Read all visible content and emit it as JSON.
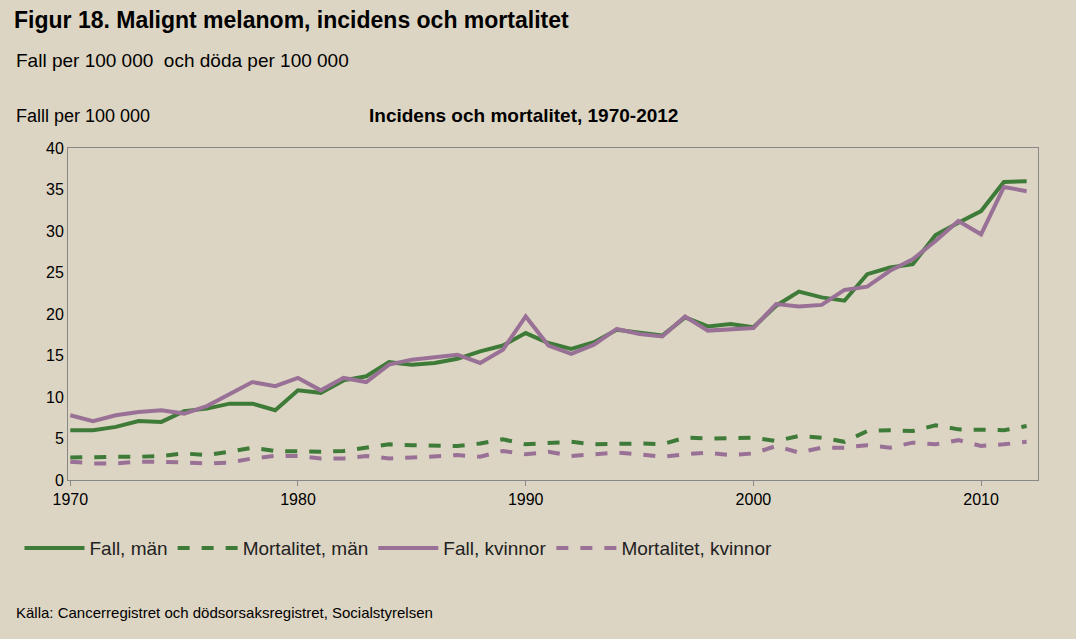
{
  "chart_data": {
    "type": "line",
    "title": "Figur 18. Malignt melanom, incidens och mortalitet",
    "subtitle": "Fall per 100 000  och döda per 100 000",
    "ylabel": "Falll per 100 000",
    "chart_title": "Incidens och mortalitet, 1970-2012",
    "source": "Källa: Cancerregistret och dödsorsaksregistret, Socialstyrelsen",
    "x": [
      1970,
      1971,
      1972,
      1973,
      1974,
      1975,
      1976,
      1977,
      1978,
      1979,
      1980,
      1981,
      1982,
      1983,
      1984,
      1985,
      1986,
      1987,
      1988,
      1989,
      1990,
      1991,
      1992,
      1993,
      1994,
      1995,
      1996,
      1997,
      1998,
      1999,
      2000,
      2001,
      2002,
      2003,
      2004,
      2005,
      2006,
      2007,
      2008,
      2009,
      2010,
      2011,
      2012
    ],
    "xlim": [
      1969.9,
      2012.5
    ],
    "xticks": [
      1970,
      1980,
      1990,
      2000,
      2010
    ],
    "ylim": [
      0,
      40
    ],
    "yticks": [
      0,
      5,
      10,
      15,
      20,
      25,
      30,
      35,
      40
    ],
    "grid": false,
    "legend": "bottom",
    "series": [
      {
        "name": "Fall, män",
        "color": "#3f7b38",
        "line_style": "solid",
        "values": [
          6.0,
          6.0,
          6.4,
          7.1,
          7.0,
          8.3,
          8.6,
          9.2,
          9.2,
          8.4,
          10.8,
          10.5,
          12.0,
          12.5,
          14.2,
          13.9,
          14.1,
          14.6,
          15.5,
          16.2,
          17.7,
          16.5,
          15.8,
          16.6,
          18.1,
          17.8,
          17.4,
          19.6,
          18.5,
          18.8,
          18.4,
          21.0,
          22.7,
          22.0,
          21.6,
          24.8,
          25.6,
          26.0,
          29.5,
          31.0,
          32.4,
          35.9,
          36.0
        ]
      },
      {
        "name": "Mortalitet, män",
        "color": "#3f7b38",
        "line_style": "dash",
        "values": [
          2.7,
          2.8,
          2.8,
          2.8,
          2.9,
          3.2,
          3.0,
          3.4,
          3.9,
          3.5,
          3.4,
          3.4,
          3.5,
          3.9,
          4.3,
          4.2,
          4.2,
          4.1,
          4.4,
          4.9,
          4.3,
          4.4,
          4.6,
          4.3,
          4.4,
          4.4,
          4.3,
          5.1,
          5.0,
          5.0,
          5.1,
          4.7,
          5.3,
          5.1,
          4.6,
          5.9,
          6.0,
          5.9,
          6.6,
          6.1,
          6.1,
          6.0,
          6.5
        ]
      },
      {
        "name": "Fall, kvinnor",
        "color": "#9a7196",
        "line_style": "solid",
        "values": [
          7.8,
          7.1,
          7.8,
          8.2,
          8.4,
          8.0,
          8.9,
          10.4,
          11.8,
          11.3,
          12.3,
          10.8,
          12.3,
          11.8,
          13.9,
          14.5,
          14.8,
          15.1,
          14.1,
          15.7,
          19.7,
          16.2,
          15.2,
          16.3,
          18.2,
          17.6,
          17.3,
          19.7,
          18.0,
          18.1,
          18.3,
          21.2,
          20.9,
          21.1,
          22.9,
          23.3,
          25.2,
          26.6,
          28.8,
          31.2,
          29.6,
          35.3,
          34.8
        ]
      },
      {
        "name": "Mortalitet, kvinnor",
        "color": "#9a7196",
        "line_style": "dash",
        "values": [
          2.2,
          2.0,
          2.0,
          2.2,
          2.2,
          2.1,
          2.0,
          2.1,
          2.6,
          2.9,
          2.9,
          2.6,
          2.6,
          2.9,
          2.6,
          2.7,
          2.8,
          3.0,
          2.8,
          3.5,
          3.1,
          3.4,
          2.9,
          3.1,
          3.3,
          3.1,
          2.8,
          3.1,
          3.3,
          3.0,
          3.2,
          4.1,
          3.3,
          3.9,
          3.9,
          4.2,
          3.9,
          4.5,
          4.3,
          4.8,
          4.1,
          4.3,
          4.6
        ]
      }
    ]
  }
}
